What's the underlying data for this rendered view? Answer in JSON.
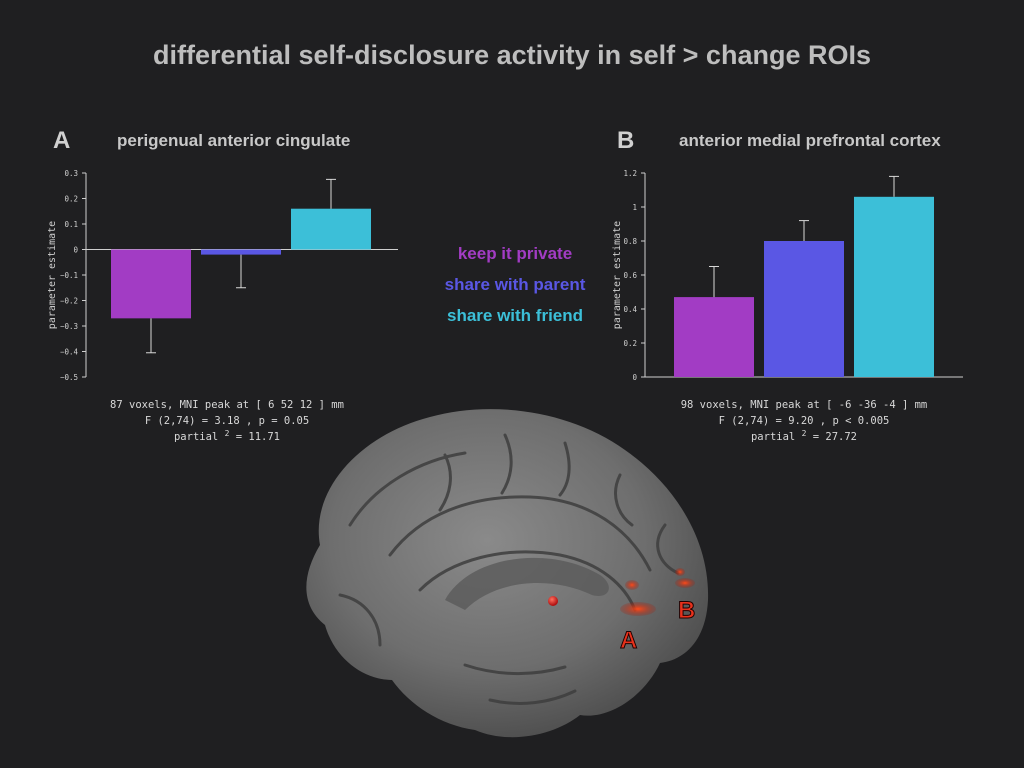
{
  "title": "differential self-disclosure activity in self > change ROIs",
  "panel_a": {
    "letter": "A",
    "title": "perigenual anterior cingulate",
    "stats_line1": "87 voxels, MNI peak at [  6 52 12 ] mm",
    "stats_line2": "F (2,74) = 3.18 , p = 0.05",
    "stats_line3_prefix": "partial",
    "stats_line3_sup": "2",
    "stats_line3_suffix": "= 11.71"
  },
  "panel_b": {
    "letter": "B",
    "title": "anterior medial prefrontal cortex",
    "stats_line1": "98 voxels, MNI peak at [ -6 -36 -4 ] mm",
    "stats_line2": "F (2,74) = 9.20 , p < 0.005",
    "stats_line3_prefix": "partial",
    "stats_line3_sup": "2",
    "stats_line3_suffix": "= 27.72"
  },
  "legend": {
    "items": [
      {
        "label": "keep it private",
        "color": "#a23cc4"
      },
      {
        "label": "share with parent",
        "color": "#5a57e4"
      },
      {
        "label": "share with friend",
        "color": "#3cbfd8"
      }
    ]
  },
  "brain": {
    "label_a": "A",
    "label_b": "B",
    "label_color": "#e8321c"
  },
  "chart_data": [
    {
      "type": "bar",
      "title": "perigenual anterior cingulate",
      "ylabel": "parameter estimate",
      "xlabel": "",
      "categories": [
        "keep it private",
        "share with parent",
        "share with friend"
      ],
      "values": [
        -0.27,
        -0.02,
        0.16
      ],
      "errors": [
        0.135,
        0.13,
        0.115
      ],
      "colors": [
        "#a23cc4",
        "#5a57e4",
        "#3cbfd8"
      ],
      "ylim": [
        -0.5,
        0.3
      ],
      "yticks": [
        0.3,
        0.2,
        0.1,
        0,
        -0.1,
        -0.2,
        -0.3,
        -0.4,
        -0.5
      ],
      "ytick_labels": [
        "0.3",
        "0.2",
        "0.1",
        "0",
        "−0.1",
        "−0.2",
        "−0.3",
        "−0.4",
        "−0.5"
      ]
    },
    {
      "type": "bar",
      "title": "anterior medial prefrontal cortex",
      "ylabel": "parameter estimate",
      "xlabel": "",
      "categories": [
        "keep it private",
        "share with parent",
        "share with friend"
      ],
      "values": [
        0.47,
        0.8,
        1.06
      ],
      "errors": [
        0.18,
        0.12,
        0.12
      ],
      "colors": [
        "#a23cc4",
        "#5a57e4",
        "#3cbfd8"
      ],
      "ylim": [
        0,
        1.2
      ],
      "yticks": [
        1.2,
        1,
        0.8,
        0.6,
        0.4,
        0.2,
        0
      ],
      "ytick_labels": [
        "1.2",
        "1",
        "0.8",
        "0.6",
        "0.4",
        "0.2",
        "0"
      ]
    }
  ]
}
